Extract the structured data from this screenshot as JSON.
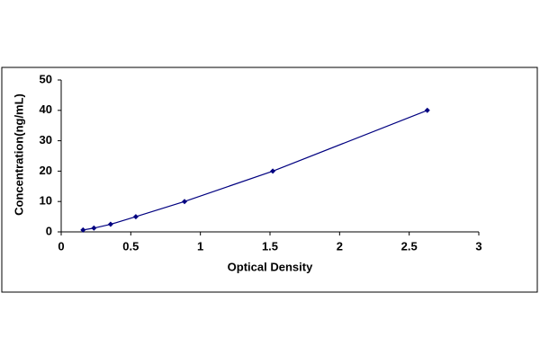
{
  "chart_data": {
    "type": "line",
    "x_label": "Optical Density",
    "y_label": "Concentration(ng/mL)",
    "x": [
      0.157,
      0.235,
      0.355,
      0.536,
      0.886,
      1.52,
      2.63
    ],
    "series": [
      {
        "color": "#000080",
        "values": [
          0.625,
          1.25,
          2.5,
          5,
          10,
          20,
          40
        ]
      }
    ],
    "xlim": [
      0,
      3
    ],
    "xticks": [
      0,
      0.5,
      1,
      1.5,
      2,
      2.5,
      3
    ],
    "ylim": [
      0,
      50
    ],
    "yticks": [
      0,
      10,
      20,
      30,
      40,
      50
    ],
    "grid": false
  }
}
